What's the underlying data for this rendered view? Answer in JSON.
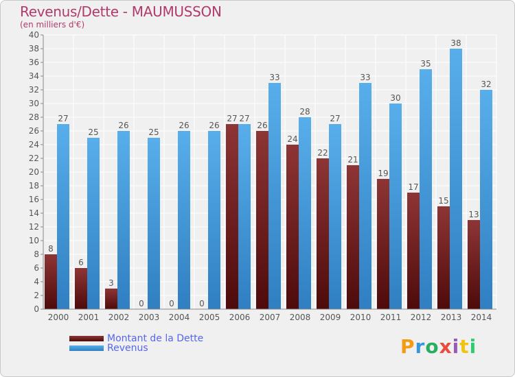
{
  "title": "Revenus/Dette - MAUMUSSON",
  "subtitle": "(en milliers d'€)",
  "logo": {
    "text": "Proxiti",
    "letters": [
      "P",
      "r",
      "o",
      "x",
      "i",
      "t",
      "i"
    ],
    "colors": [
      "#f39c12",
      "#3498db",
      "#27ae60",
      "#e74c3c",
      "#9b59b6",
      "#f1c40f",
      "#2ecc71"
    ]
  },
  "legend": {
    "items": [
      {
        "label": "Montant de la Dette",
        "color": "#7a1f1f"
      },
      {
        "label": "Revenus",
        "color": "#3e95d9"
      }
    ]
  },
  "chart_data": {
    "type": "bar",
    "title": "Revenus/Dette - MAUMUSSON",
    "subtitle": "(en milliers d'€)",
    "categories": [
      "2000",
      "2001",
      "2002",
      "2003",
      "2004",
      "2005",
      "2006",
      "2007",
      "2008",
      "2009",
      "2010",
      "2011",
      "2012",
      "2013",
      "2014"
    ],
    "series": [
      {
        "name": "Montant de la Dette",
        "color": "#7a1f1f",
        "values": [
          8,
          6,
          3,
          0,
          0,
          0,
          27,
          26,
          24,
          22,
          21,
          19,
          17,
          15,
          13
        ]
      },
      {
        "name": "Revenus",
        "color": "#3e95d9",
        "values": [
          27,
          25,
          26,
          25,
          26,
          26,
          27,
          33,
          28,
          27,
          33,
          30,
          35,
          38,
          32
        ]
      }
    ],
    "ylim": [
      0,
      40
    ],
    "yticks": [
      0,
      2,
      4,
      6,
      8,
      10,
      12,
      14,
      16,
      18,
      20,
      22,
      24,
      26,
      28,
      30,
      32,
      34,
      36,
      38,
      40
    ],
    "grid": true,
    "legend_position": "bottom-left"
  }
}
